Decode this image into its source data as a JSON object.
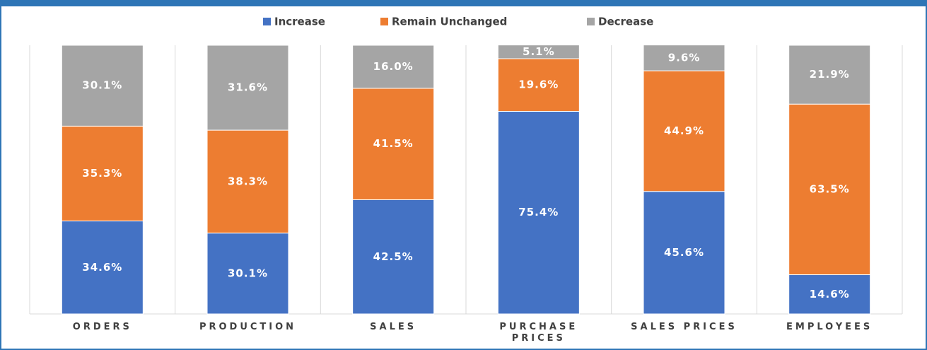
{
  "chart_data": {
    "type": "stacked_bar",
    "categories": [
      "ORDERS",
      "PRODUCTION",
      "SALES",
      "PURCHASE PRICES",
      "SALES PRICES",
      "EMPLOYEES"
    ],
    "series": [
      {
        "name": "Increase",
        "color": "#4472c4",
        "values": [
          34.6,
          30.1,
          42.5,
          75.4,
          45.6,
          14.6
        ],
        "value_labels": [
          "34.6%",
          "30.1%",
          "42.5%",
          "75.4%",
          "45.6%",
          "14.6%"
        ]
      },
      {
        "name": "Remain Unchanged",
        "color": "#ed7d31",
        "values": [
          35.3,
          38.3,
          41.5,
          19.6,
          44.9,
          63.5
        ],
        "value_labels": [
          "35.3%",
          "38.3%",
          "41.5%",
          "19.6%",
          "44.9%",
          "63.5%"
        ]
      },
      {
        "name": "Decrease",
        "color": "#a5a5a5",
        "values": [
          30.1,
          31.6,
          16.0,
          5.1,
          9.6,
          21.9
        ],
        "value_labels": [
          "30.1%",
          "31.6%",
          "16.0%",
          "5.1%",
          "9.6%",
          "21.9%"
        ]
      }
    ],
    "ylim": [
      0,
      100
    ],
    "legend": "top"
  }
}
